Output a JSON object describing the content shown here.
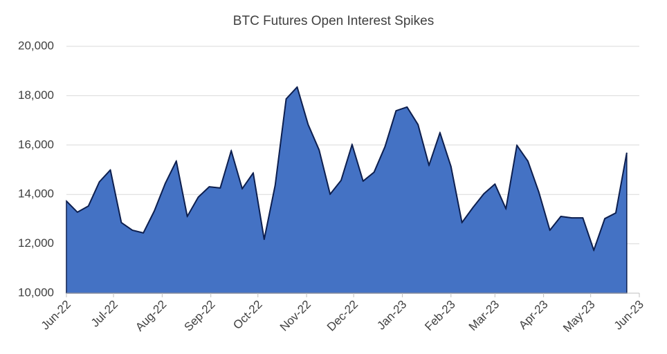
{
  "chart_data": {
    "type": "area",
    "title": "BTC Futures Open Interest Spikes",
    "x": [
      0,
      7,
      14,
      21,
      28,
      35,
      42,
      49,
      56,
      63,
      70,
      77,
      84,
      91,
      98,
      105,
      112,
      119,
      126,
      133,
      140,
      147,
      154,
      161,
      168,
      175,
      182,
      189,
      196,
      203,
      210,
      217,
      224,
      231,
      238,
      245,
      252,
      259,
      266,
      273,
      280,
      287,
      294,
      301,
      308,
      315,
      322,
      329,
      336,
      343,
      350,
      357
    ],
    "values": [
      13730,
      13280,
      13530,
      14510,
      14990,
      12860,
      12550,
      12440,
      13330,
      14450,
      15350,
      13110,
      13890,
      14310,
      14260,
      15770,
      14230,
      14870,
      12180,
      14370,
      17870,
      18350,
      16830,
      15800,
      14010,
      14570,
      16020,
      14540,
      14900,
      15940,
      17390,
      17540,
      16830,
      15180,
      16500,
      15130,
      12860,
      13470,
      14030,
      14420,
      13420,
      15990,
      15350,
      14090,
      12550,
      13110,
      13050,
      13050,
      11740,
      13020,
      13250,
      15690
    ],
    "color": "#4472c4",
    "line_color": "#0d1f4f",
    "xlim": [
      0,
      365
    ],
    "xticks": [
      {
        "value": 0,
        "label": "Jun-22"
      },
      {
        "value": 30,
        "label": "Jul-22"
      },
      {
        "value": 61,
        "label": "Aug-22"
      },
      {
        "value": 92,
        "label": "Sep-22"
      },
      {
        "value": 122,
        "label": "Oct-22"
      },
      {
        "value": 153,
        "label": "Nov-22"
      },
      {
        "value": 183,
        "label": "Dec-22"
      },
      {
        "value": 214,
        "label": "Jan-23"
      },
      {
        "value": 245,
        "label": "Feb-23"
      },
      {
        "value": 273,
        "label": "Mar-23"
      },
      {
        "value": 304,
        "label": "Apr-23"
      },
      {
        "value": 334,
        "label": "May-23"
      },
      {
        "value": 365,
        "label": "Jun-23"
      }
    ],
    "ylim": [
      10000,
      20000
    ],
    "yticks": [
      {
        "value": 10000,
        "label": "10,000"
      },
      {
        "value": 12000,
        "label": "12,000"
      },
      {
        "value": 14000,
        "label": "14,000"
      },
      {
        "value": 16000,
        "label": "16,000"
      },
      {
        "value": 18000,
        "label": "18,000"
      },
      {
        "value": 20000,
        "label": "20,000"
      }
    ],
    "grid": true
  }
}
